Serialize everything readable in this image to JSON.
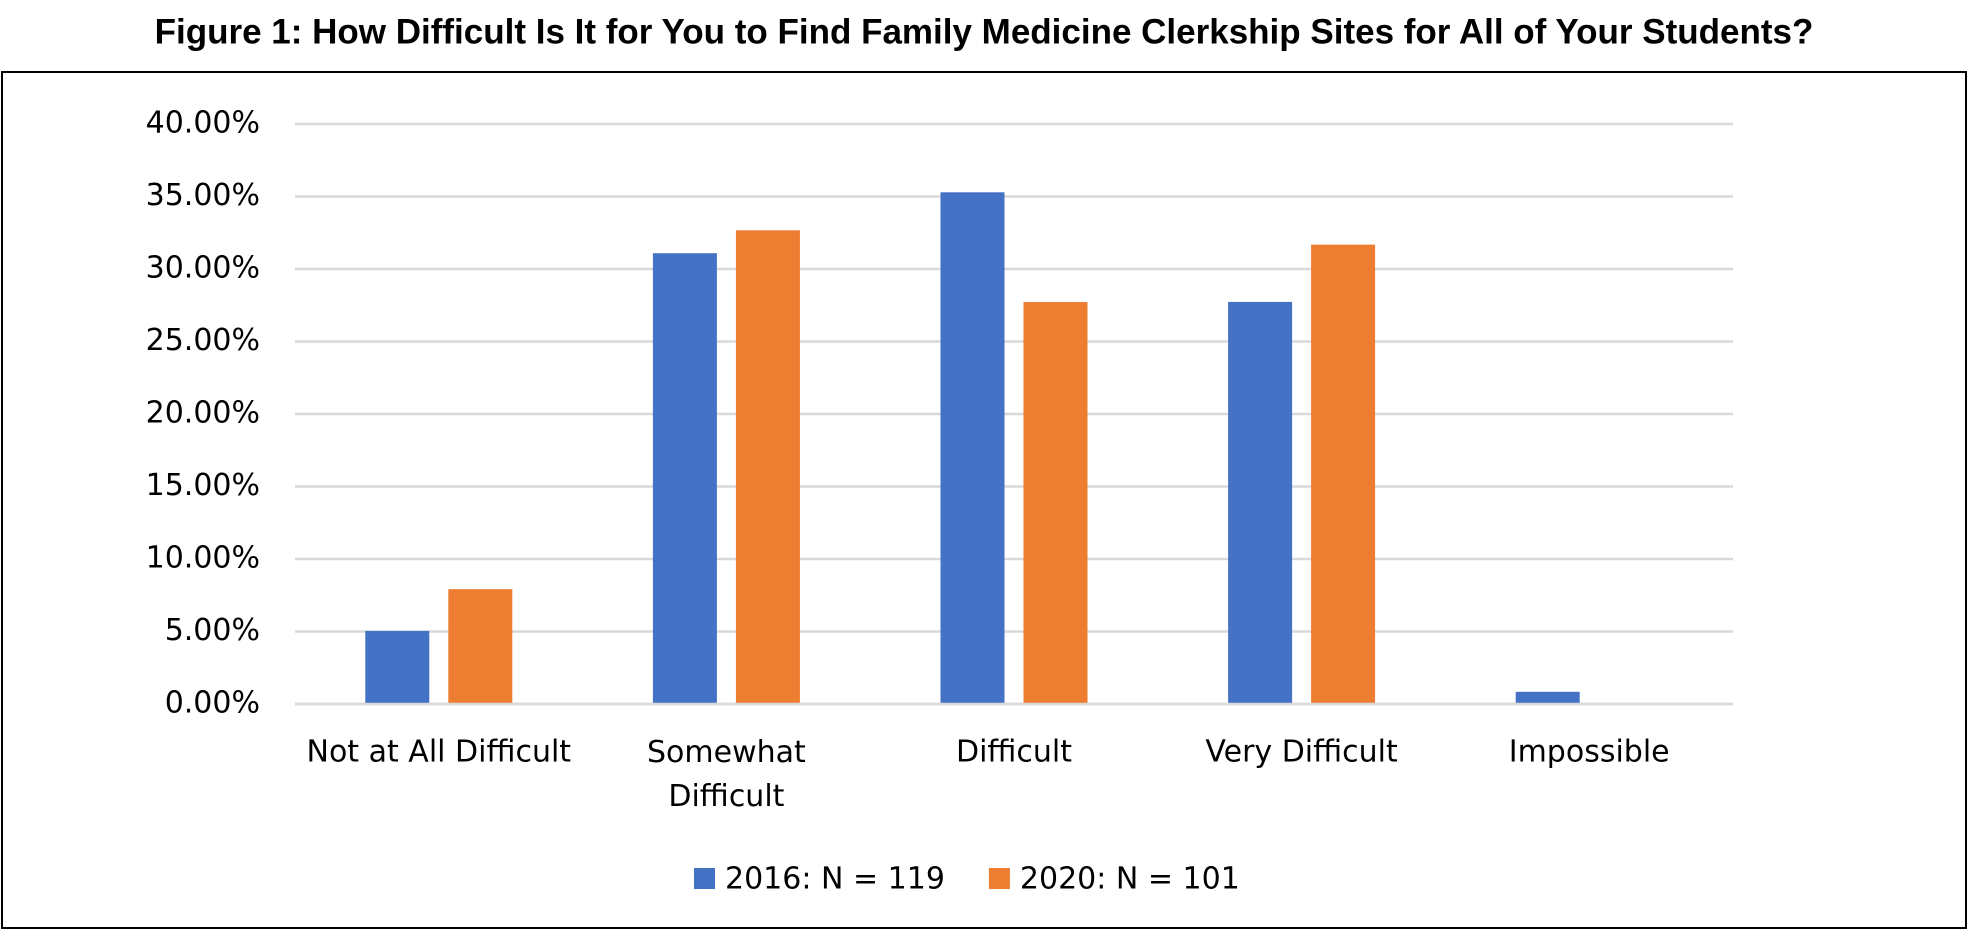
{
  "chart_data": {
    "type": "bar",
    "title": "Figure 1: How Difficult Is It for You to Find Family Medicine Clerkship Sites for All of Your Students?",
    "categories": [
      "Not at All Difficult",
      "Somewhat Difficult",
      "Difficult",
      "Very Difficult",
      "Impossible"
    ],
    "series": [
      {
        "name": "2016: N = 119",
        "color": "#4472c4",
        "values": [
          5.04,
          31.09,
          35.29,
          27.73,
          0.84
        ]
      },
      {
        "name": "2020: N = 101",
        "color": "#ed7d31",
        "values": [
          7.92,
          32.67,
          27.72,
          31.68,
          0
        ]
      }
    ],
    "ylim": [
      0,
      40
    ],
    "yticks": [
      {
        "value": 0,
        "label": "0.00%"
      },
      {
        "value": 5,
        "label": "5.00%"
      },
      {
        "value": 10,
        "label": "10.00%"
      },
      {
        "value": 15,
        "label": "15.00%"
      },
      {
        "value": 20,
        "label": "20.00%"
      },
      {
        "value": 25,
        "label": "25.00%"
      },
      {
        "value": 30,
        "label": "30.00%"
      },
      {
        "value": 35,
        "label": "35.00%"
      },
      {
        "value": 40,
        "label": "40.00%"
      }
    ],
    "grid": true,
    "legend": "bottom"
  }
}
